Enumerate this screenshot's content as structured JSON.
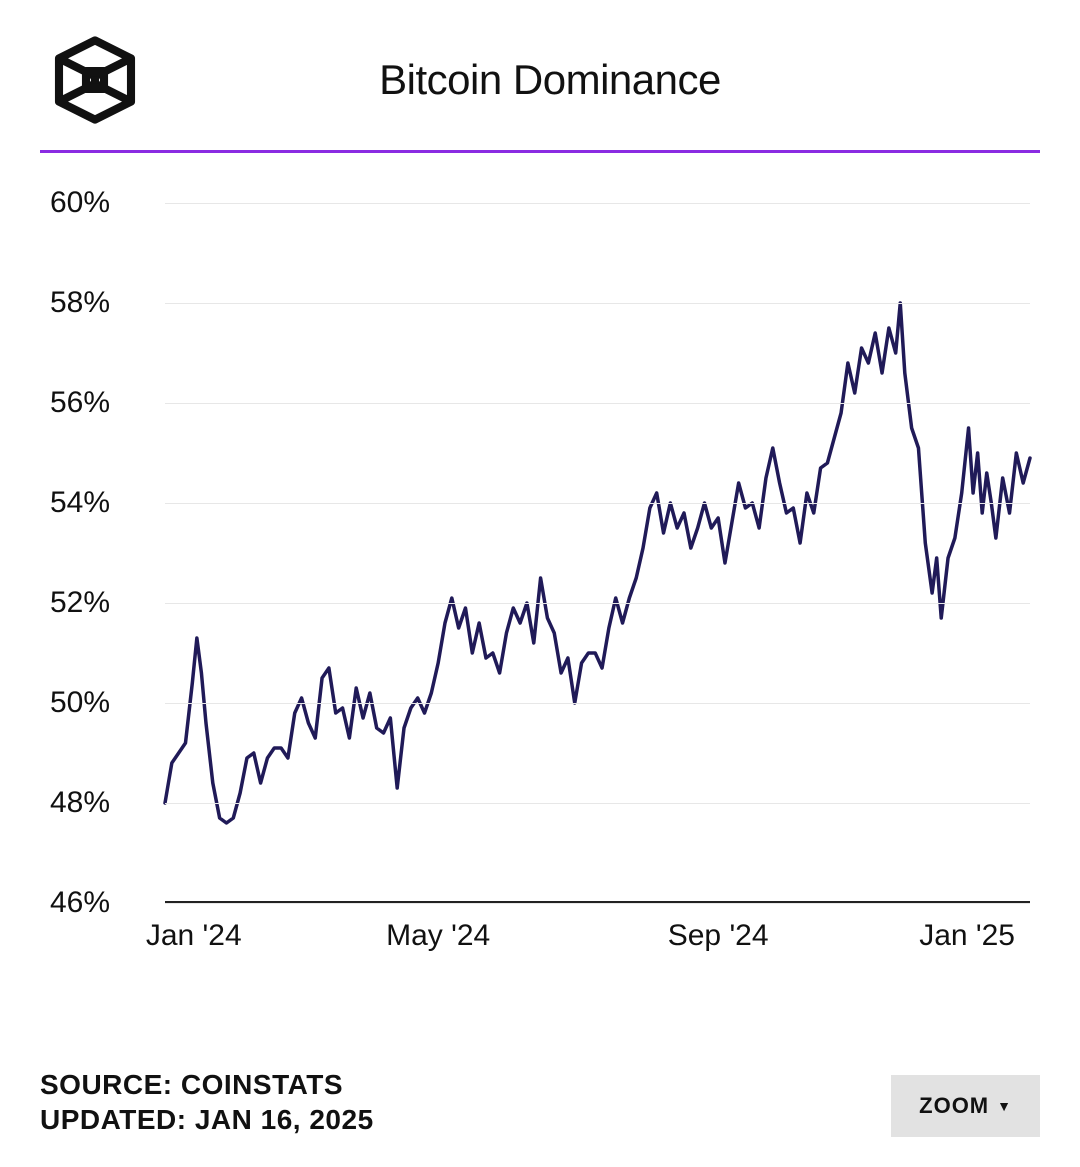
{
  "header": {
    "title": "Bitcoin Dominance",
    "logo_stroke": "#111111",
    "logo_stroke_width": 9
  },
  "accent_line_color": "#8a2be2",
  "chart": {
    "type": "line",
    "line_color": "#201a58",
    "line_width": 3.5,
    "background_color": "#ffffff",
    "grid_color": "#e7e7e7",
    "axis_color": "#222222",
    "ylabel_fontsize": 30,
    "xlabel_fontsize": 30,
    "ylim": [
      46,
      60
    ],
    "y_ticks": [
      {
        "value": 46,
        "label": "46%"
      },
      {
        "value": 48,
        "label": "48%"
      },
      {
        "value": 50,
        "label": "50%"
      },
      {
        "value": 52,
        "label": "52%"
      },
      {
        "value": 54,
        "label": "54%"
      },
      {
        "value": 56,
        "label": "56%"
      },
      {
        "value": 58,
        "label": "58%"
      },
      {
        "value": 60,
        "label": "60%"
      }
    ],
    "xlim": [
      0,
      380
    ],
    "x_ticks": [
      {
        "value": 0,
        "label": "Jan '24"
      },
      {
        "value": 120,
        "label": "May '24"
      },
      {
        "value": 243,
        "label": "Sep '24"
      },
      {
        "value": 365,
        "label": "Jan '25"
      }
    ],
    "series": [
      {
        "x": 0,
        "y": 48.0
      },
      {
        "x": 3,
        "y": 48.8
      },
      {
        "x": 6,
        "y": 49.0
      },
      {
        "x": 9,
        "y": 49.2
      },
      {
        "x": 12,
        "y": 50.4
      },
      {
        "x": 14,
        "y": 51.3
      },
      {
        "x": 16,
        "y": 50.6
      },
      {
        "x": 18,
        "y": 49.6
      },
      {
        "x": 21,
        "y": 48.4
      },
      {
        "x": 24,
        "y": 47.7
      },
      {
        "x": 27,
        "y": 47.6
      },
      {
        "x": 30,
        "y": 47.7
      },
      {
        "x": 33,
        "y": 48.2
      },
      {
        "x": 36,
        "y": 48.9
      },
      {
        "x": 39,
        "y": 49.0
      },
      {
        "x": 42,
        "y": 48.4
      },
      {
        "x": 45,
        "y": 48.9
      },
      {
        "x": 48,
        "y": 49.1
      },
      {
        "x": 51,
        "y": 49.1
      },
      {
        "x": 54,
        "y": 48.9
      },
      {
        "x": 57,
        "y": 49.8
      },
      {
        "x": 60,
        "y": 50.1
      },
      {
        "x": 63,
        "y": 49.6
      },
      {
        "x": 66,
        "y": 49.3
      },
      {
        "x": 69,
        "y": 50.5
      },
      {
        "x": 72,
        "y": 50.7
      },
      {
        "x": 75,
        "y": 49.8
      },
      {
        "x": 78,
        "y": 49.9
      },
      {
        "x": 81,
        "y": 49.3
      },
      {
        "x": 84,
        "y": 50.3
      },
      {
        "x": 87,
        "y": 49.7
      },
      {
        "x": 90,
        "y": 50.2
      },
      {
        "x": 93,
        "y": 49.5
      },
      {
        "x": 96,
        "y": 49.4
      },
      {
        "x": 99,
        "y": 49.7
      },
      {
        "x": 102,
        "y": 48.3
      },
      {
        "x": 105,
        "y": 49.5
      },
      {
        "x": 108,
        "y": 49.9
      },
      {
        "x": 111,
        "y": 50.1
      },
      {
        "x": 114,
        "y": 49.8
      },
      {
        "x": 117,
        "y": 50.2
      },
      {
        "x": 120,
        "y": 50.8
      },
      {
        "x": 123,
        "y": 51.6
      },
      {
        "x": 126,
        "y": 52.1
      },
      {
        "x": 129,
        "y": 51.5
      },
      {
        "x": 132,
        "y": 51.9
      },
      {
        "x": 135,
        "y": 51.0
      },
      {
        "x": 138,
        "y": 51.6
      },
      {
        "x": 141,
        "y": 50.9
      },
      {
        "x": 144,
        "y": 51.0
      },
      {
        "x": 147,
        "y": 50.6
      },
      {
        "x": 150,
        "y": 51.4
      },
      {
        "x": 153,
        "y": 51.9
      },
      {
        "x": 156,
        "y": 51.6
      },
      {
        "x": 159,
        "y": 52.0
      },
      {
        "x": 162,
        "y": 51.2
      },
      {
        "x": 165,
        "y": 52.5
      },
      {
        "x": 168,
        "y": 51.7
      },
      {
        "x": 171,
        "y": 51.4
      },
      {
        "x": 174,
        "y": 50.6
      },
      {
        "x": 177,
        "y": 50.9
      },
      {
        "x": 180,
        "y": 50.0
      },
      {
        "x": 183,
        "y": 50.8
      },
      {
        "x": 186,
        "y": 51.0
      },
      {
        "x": 189,
        "y": 51.0
      },
      {
        "x": 192,
        "y": 50.7
      },
      {
        "x": 195,
        "y": 51.5
      },
      {
        "x": 198,
        "y": 52.1
      },
      {
        "x": 201,
        "y": 51.6
      },
      {
        "x": 204,
        "y": 52.1
      },
      {
        "x": 207,
        "y": 52.5
      },
      {
        "x": 210,
        "y": 53.1
      },
      {
        "x": 213,
        "y": 53.9
      },
      {
        "x": 216,
        "y": 54.2
      },
      {
        "x": 219,
        "y": 53.4
      },
      {
        "x": 222,
        "y": 54.0
      },
      {
        "x": 225,
        "y": 53.5
      },
      {
        "x": 228,
        "y": 53.8
      },
      {
        "x": 231,
        "y": 53.1
      },
      {
        "x": 234,
        "y": 53.5
      },
      {
        "x": 237,
        "y": 54.0
      },
      {
        "x": 240,
        "y": 53.5
      },
      {
        "x": 243,
        "y": 53.7
      },
      {
        "x": 246,
        "y": 52.8
      },
      {
        "x": 249,
        "y": 53.6
      },
      {
        "x": 252,
        "y": 54.4
      },
      {
        "x": 255,
        "y": 53.9
      },
      {
        "x": 258,
        "y": 54.0
      },
      {
        "x": 261,
        "y": 53.5
      },
      {
        "x": 264,
        "y": 54.5
      },
      {
        "x": 267,
        "y": 55.1
      },
      {
        "x": 270,
        "y": 54.4
      },
      {
        "x": 273,
        "y": 53.8
      },
      {
        "x": 276,
        "y": 53.9
      },
      {
        "x": 279,
        "y": 53.2
      },
      {
        "x": 282,
        "y": 54.2
      },
      {
        "x": 285,
        "y": 53.8
      },
      {
        "x": 288,
        "y": 54.7
      },
      {
        "x": 291,
        "y": 54.8
      },
      {
        "x": 294,
        "y": 55.3
      },
      {
        "x": 297,
        "y": 55.8
      },
      {
        "x": 300,
        "y": 56.8
      },
      {
        "x": 303,
        "y": 56.2
      },
      {
        "x": 306,
        "y": 57.1
      },
      {
        "x": 309,
        "y": 56.8
      },
      {
        "x": 312,
        "y": 57.4
      },
      {
        "x": 315,
        "y": 56.6
      },
      {
        "x": 318,
        "y": 57.5
      },
      {
        "x": 321,
        "y": 57.0
      },
      {
        "x": 323,
        "y": 58.0
      },
      {
        "x": 325,
        "y": 56.6
      },
      {
        "x": 328,
        "y": 55.5
      },
      {
        "x": 331,
        "y": 55.1
      },
      {
        "x": 334,
        "y": 53.2
      },
      {
        "x": 337,
        "y": 52.2
      },
      {
        "x": 339,
        "y": 52.9
      },
      {
        "x": 341,
        "y": 51.7
      },
      {
        "x": 344,
        "y": 52.9
      },
      {
        "x": 347,
        "y": 53.3
      },
      {
        "x": 350,
        "y": 54.2
      },
      {
        "x": 353,
        "y": 55.5
      },
      {
        "x": 355,
        "y": 54.2
      },
      {
        "x": 357,
        "y": 55.0
      },
      {
        "x": 359,
        "y": 53.8
      },
      {
        "x": 361,
        "y": 54.6
      },
      {
        "x": 363,
        "y": 54.0
      },
      {
        "x": 365,
        "y": 53.3
      },
      {
        "x": 368,
        "y": 54.5
      },
      {
        "x": 371,
        "y": 53.8
      },
      {
        "x": 374,
        "y": 55.0
      },
      {
        "x": 377,
        "y": 54.4
      },
      {
        "x": 380,
        "y": 54.9
      }
    ]
  },
  "footer": {
    "source_label": "SOURCE: COINSTATS",
    "updated_label": "UPDATED: JAN 16, 2025",
    "zoom_label": "ZOOM"
  }
}
